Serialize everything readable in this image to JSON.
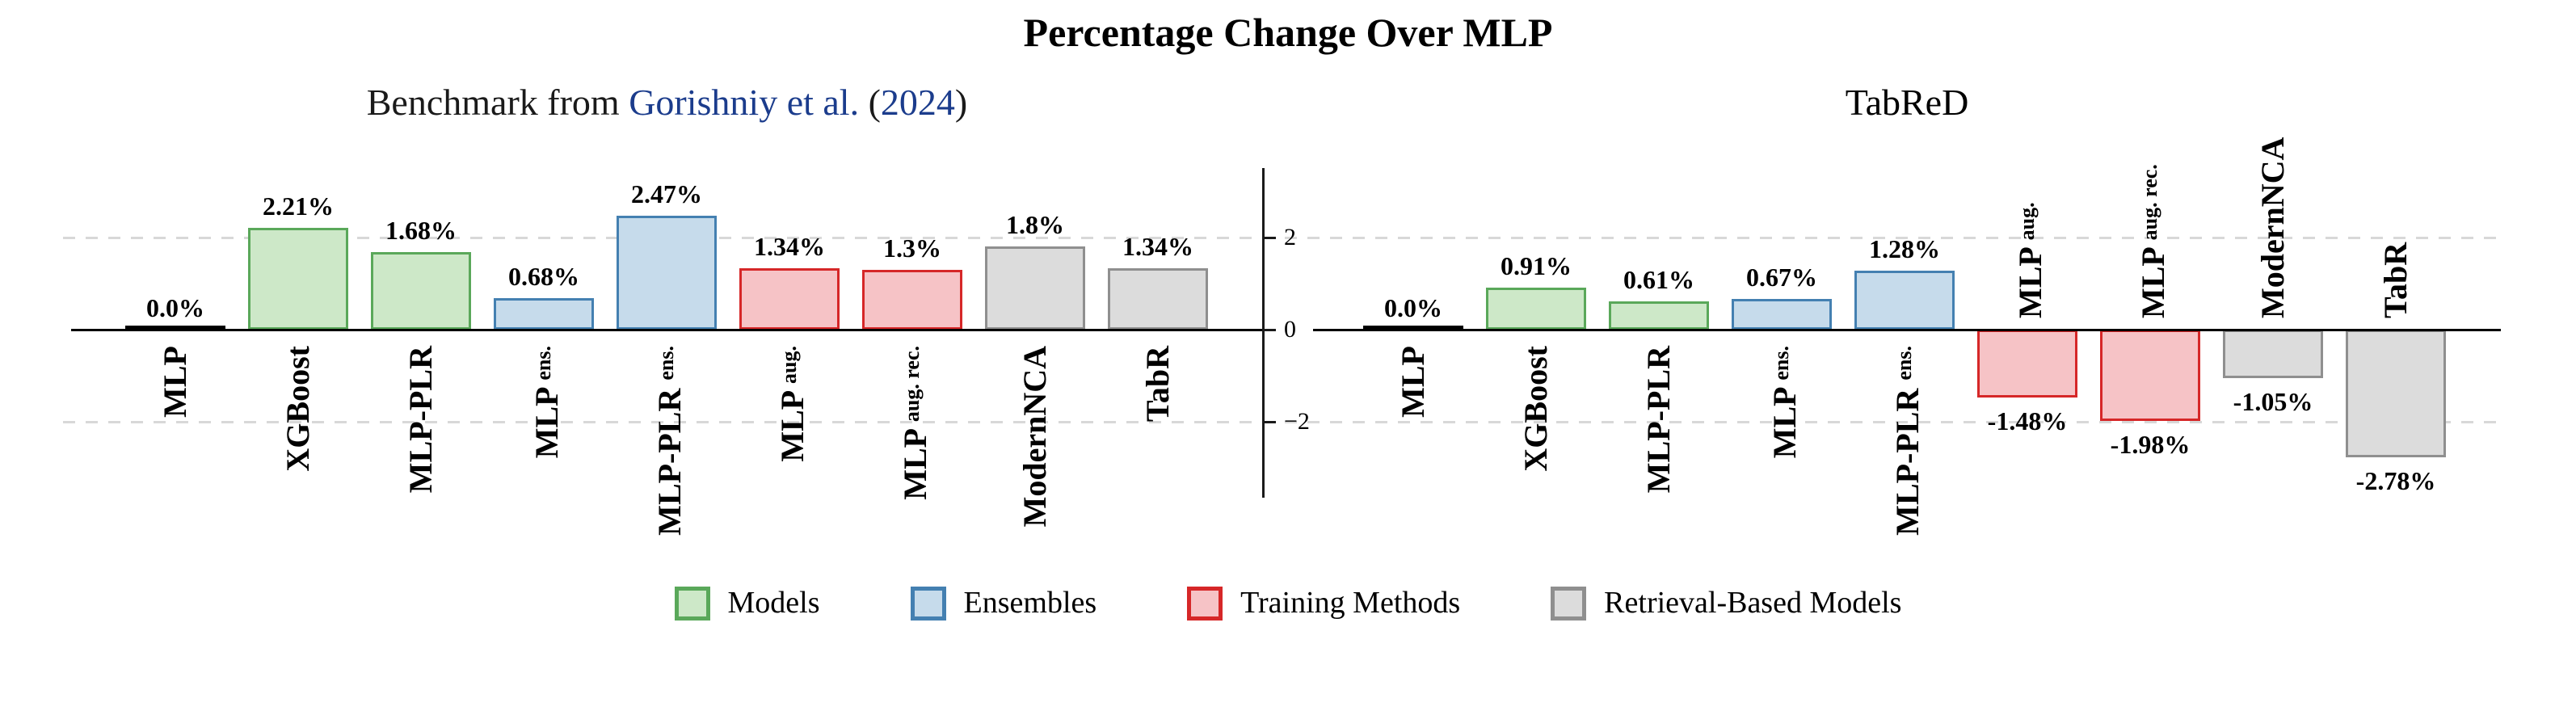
{
  "figure": {
    "title": "Percentage Change Over MLP"
  },
  "subtitle_left": {
    "full_text": "Benchmark from Gorishniy et al. (2024)",
    "parts": [
      {
        "text": "Benchmark from ",
        "color": "text"
      },
      {
        "text": "Gorishniy et al.",
        "color": "link"
      },
      {
        "text": " (",
        "color": "text"
      },
      {
        "text": "2024",
        "color": "link"
      },
      {
        "text": ")",
        "color": "text"
      }
    ]
  },
  "subtitle_right": {
    "full_text": "TabReD"
  },
  "colors": {
    "text": "#1a1a1a",
    "link": "#1b3c8c",
    "axis": "#000000",
    "gridline": "#d8d8d8",
    "groups": {
      "baseline": {
        "fill": "#000000",
        "border": "#000000"
      },
      "models": {
        "fill": "#cde8c8",
        "border": "#5aa85a"
      },
      "ensembles": {
        "fill": "#c6dbeb",
        "border": "#4480b1"
      },
      "training": {
        "fill": "#f6c3c6",
        "border": "#d62728"
      },
      "retrieval": {
        "fill": "#dcdcdc",
        "border": "#8f8f8f"
      }
    }
  },
  "y_axis": {
    "ticks": [
      {
        "value": 2,
        "label": "2"
      },
      {
        "value": 0,
        "label": "0"
      },
      {
        "value": -2,
        "label": "−2"
      }
    ],
    "gridline_values": [
      2,
      -2
    ]
  },
  "legend": {
    "items": [
      {
        "key": "models",
        "label": "Models"
      },
      {
        "key": "ensembles",
        "label": "Ensembles"
      },
      {
        "key": "training",
        "label": "Training Methods"
      },
      {
        "key": "retrieval",
        "label": "Retrieval-Based Models"
      }
    ]
  },
  "chart_data": [
    {
      "type": "bar",
      "title": "Benchmark from Gorishniy et al. (2024)",
      "ylabel": "",
      "xlabel": "",
      "ylim": [
        -3.6,
        3.5
      ],
      "grid": "dashed horizontal at +2 and -2",
      "legend_position": "bottom center, shared",
      "categories": [
        "MLP",
        "XGBoost",
        "MLP-PLR",
        "MLP ens.",
        "MLP-PLR ens.",
        "MLP aug.",
        "MLP aug. rec.",
        "ModernNCA",
        "TabR"
      ],
      "categories_rich": [
        {
          "main": "MLP",
          "suffix": ""
        },
        {
          "main": "XGBoost",
          "suffix": ""
        },
        {
          "main": "MLP-PLR",
          "suffix": ""
        },
        {
          "main": "MLP",
          "suffix": "ens."
        },
        {
          "main": "MLP-PLR",
          "suffix": "ens."
        },
        {
          "main": "MLP",
          "suffix": "aug."
        },
        {
          "main": "MLP",
          "suffix": "aug. rec."
        },
        {
          "main": "ModernNCA",
          "suffix": ""
        },
        {
          "main": "TabR",
          "suffix": ""
        }
      ],
      "groups": [
        "baseline",
        "models",
        "models",
        "ensembles",
        "ensembles",
        "training",
        "training",
        "retrieval",
        "retrieval"
      ],
      "values": [
        0.0,
        2.21,
        1.68,
        0.68,
        2.47,
        1.34,
        1.3,
        1.8,
        1.34
      ],
      "value_labels": [
        "0.0%",
        "2.21%",
        "1.68%",
        "0.68%",
        "2.47%",
        "1.34%",
        "1.3%",
        "1.8%",
        "1.34%"
      ]
    },
    {
      "type": "bar",
      "title": "TabReD",
      "ylabel": "",
      "xlabel": "",
      "ylim": [
        -3.6,
        3.5
      ],
      "grid": "dashed horizontal at +2 and -2",
      "legend_position": "bottom center, shared",
      "categories": [
        "MLP",
        "XGBoost",
        "MLP-PLR",
        "MLP ens.",
        "MLP-PLR ens.",
        "MLP aug.",
        "MLP aug. rec.",
        "ModernNCA",
        "TabR"
      ],
      "categories_rich": [
        {
          "main": "MLP",
          "suffix": ""
        },
        {
          "main": "XGBoost",
          "suffix": ""
        },
        {
          "main": "MLP-PLR",
          "suffix": ""
        },
        {
          "main": "MLP",
          "suffix": "ens."
        },
        {
          "main": "MLP-PLR",
          "suffix": "ens."
        },
        {
          "main": "MLP",
          "suffix": "aug."
        },
        {
          "main": "MLP",
          "suffix": "aug. rec."
        },
        {
          "main": "ModernNCA",
          "suffix": ""
        },
        {
          "main": "TabR",
          "suffix": ""
        }
      ],
      "groups": [
        "baseline",
        "models",
        "models",
        "ensembles",
        "ensembles",
        "training",
        "training",
        "retrieval",
        "retrieval"
      ],
      "values": [
        0.0,
        0.91,
        0.61,
        0.67,
        1.28,
        -1.48,
        -1.98,
        -1.05,
        -2.78
      ],
      "value_labels": [
        "0.0%",
        "0.91%",
        "0.61%",
        "0.67%",
        "1.28%",
        "-1.48%",
        "-1.98%",
        "-1.05%",
        "-2.78%"
      ]
    }
  ]
}
